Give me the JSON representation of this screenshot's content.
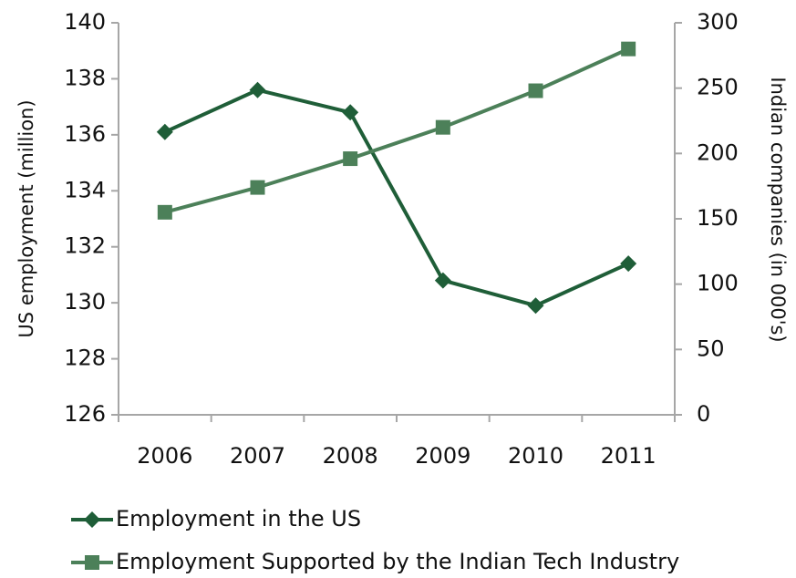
{
  "chart_data": {
    "type": "line",
    "categories": [
      "2006",
      "2007",
      "2008",
      "2009",
      "2010",
      "2011"
    ],
    "ylabel": "US employment (million)",
    "y2label": "Indian companies (in 000's)",
    "ylim": [
      126,
      140
    ],
    "yticks": [
      126,
      128,
      130,
      132,
      134,
      136,
      138,
      140
    ],
    "y2lim": [
      0,
      300
    ],
    "y2ticks": [
      0,
      50,
      100,
      150,
      200,
      250,
      300
    ],
    "series": [
      {
        "name": "Employment in the US",
        "color": "#1f5e38",
        "marker": "diamond",
        "values": [
          136.1,
          137.6,
          136.8,
          130.8,
          129.9,
          131.4
        ]
      },
      {
        "name": "Employment Supported by the Indian Tech Industry",
        "color": "#4c8059",
        "marker": "square",
        "axis": "y2",
        "values": [
          155,
          174,
          196,
          220,
          248,
          280
        ]
      }
    ]
  }
}
